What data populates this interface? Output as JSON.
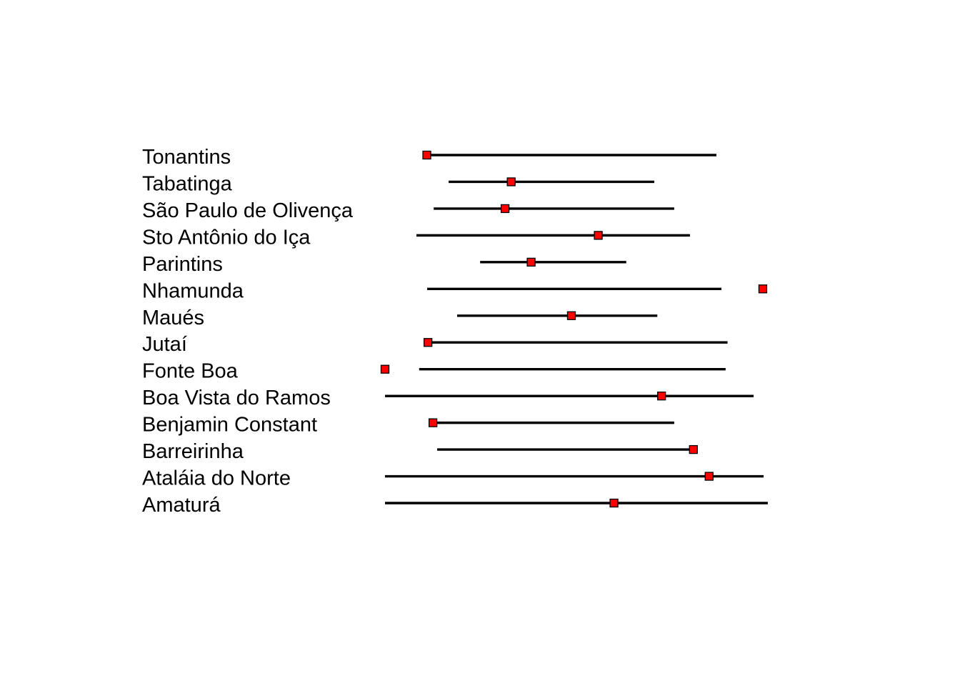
{
  "chart_data": {
    "type": "forest",
    "title": "",
    "xlabel": "",
    "ylabel": "",
    "axes_visible": false,
    "grid": false,
    "legend": "none",
    "xlim": [
      0,
      100
    ],
    "colors": {
      "interval": "#000000",
      "marker": "#ff0000",
      "marker_outline": "#000000"
    },
    "rows": [
      {
        "label": "Tonantins",
        "low": 10.9,
        "high": 86.4,
        "estimate": 10.9
      },
      {
        "label": "Tabatinga",
        "low": 16.6,
        "high": 70.2,
        "estimate": 32.9
      },
      {
        "label": "São Paulo de Olivença",
        "low": 12.7,
        "high": 75.4,
        "estimate": 31.3
      },
      {
        "label": "Sto Antônio do Iça",
        "low": 8.2,
        "high": 79.5,
        "estimate": 55.6
      },
      {
        "label": "Parintins",
        "low": 24.8,
        "high": 62.9,
        "estimate": 38.1
      },
      {
        "label": "Nhamunda",
        "low": 11.0,
        "high": 87.7,
        "estimate": 98.5
      },
      {
        "label": "Maués",
        "low": 18.8,
        "high": 71.0,
        "estimate": 48.6
      },
      {
        "label": "Jutaí",
        "low": 10.8,
        "high": 89.3,
        "estimate": 11.2
      },
      {
        "label": "Fonte Boa",
        "low": 8.9,
        "high": 88.8,
        "estimate": 0.0
      },
      {
        "label": "Boa Vista do Ramos",
        "low": 0.0,
        "high": 96.1,
        "estimate": 72.1
      },
      {
        "label": "Benjamin Constant",
        "low": 12.1,
        "high": 75.4,
        "estimate": 12.5
      },
      {
        "label": "Barreirinha",
        "low": 13.6,
        "high": 80.4,
        "estimate": 80.4
      },
      {
        "label": "Ataláia do Norte",
        "low": 0.0,
        "high": 98.7,
        "estimate": 84.5
      },
      {
        "label": "Amaturá",
        "low": 0.0,
        "high": 99.8,
        "estimate": 59.7
      }
    ]
  }
}
